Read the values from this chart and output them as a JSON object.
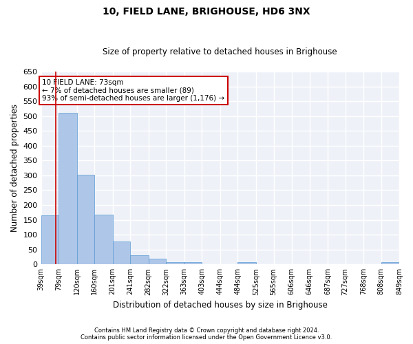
{
  "title": "10, FIELD LANE, BRIGHOUSE, HD6 3NX",
  "subtitle": "Size of property relative to detached houses in Brighouse",
  "xlabel": "Distribution of detached houses by size in Brighouse",
  "ylabel": "Number of detached properties",
  "bar_color": "#aec6e8",
  "bar_edge_color": "#5b9bd5",
  "background_color": "#eef2f8",
  "grid_color": "#ffffff",
  "bins": [
    39,
    79,
    120,
    160,
    201,
    241,
    282,
    322,
    363,
    403,
    444,
    484,
    525,
    565,
    606,
    646,
    687,
    727,
    768,
    808,
    849
  ],
  "counts": [
    165,
    510,
    302,
    168,
    78,
    31,
    20,
    8,
    8,
    0,
    0,
    8,
    0,
    0,
    0,
    0,
    0,
    0,
    0,
    8
  ],
  "property_size": 73,
  "annotation_text": "10 FIELD LANE: 73sqm\n← 7% of detached houses are smaller (89)\n93% of semi-detached houses are larger (1,176) →",
  "annotation_box_color": "#ffffff",
  "annotation_box_edge": "#cc0000",
  "vline_color": "#cc0000",
  "ylim": [
    0,
    650
  ],
  "yticks": [
    0,
    50,
    100,
    150,
    200,
    250,
    300,
    350,
    400,
    450,
    500,
    550,
    600,
    650
  ],
  "footer_line1": "Contains HM Land Registry data © Crown copyright and database right 2024.",
  "footer_line2": "Contains public sector information licensed under the Open Government Licence v3.0."
}
